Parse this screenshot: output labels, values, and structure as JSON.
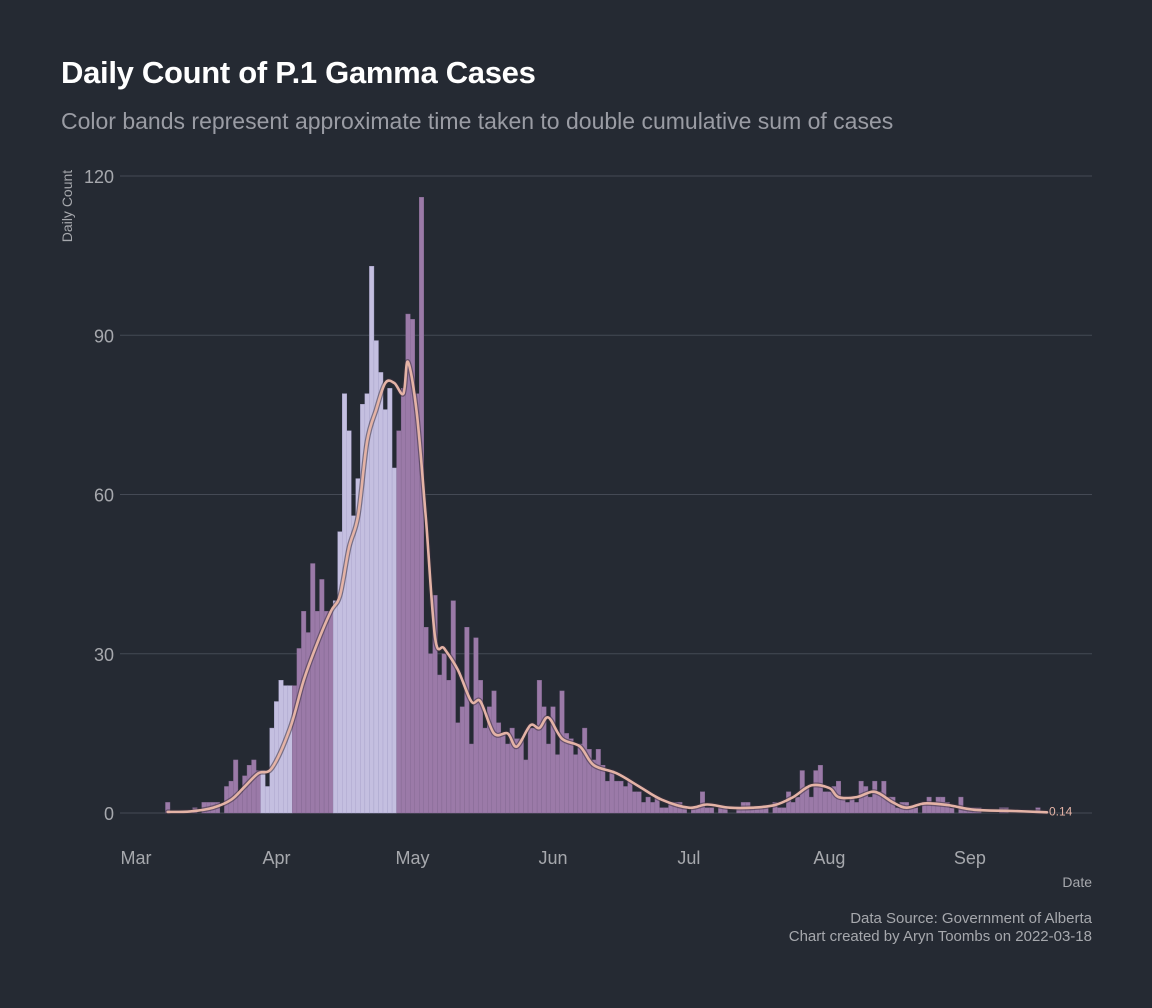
{
  "title": "Daily Count of P.1 Gamma Cases",
  "subtitle": "Color bands represent approximate time taken to double cumulative sum of cases",
  "caption": {
    "line1": "Data Source: Government of Alberta",
    "line2": "Chart created by Aryn Toombs on 2022-03-18"
  },
  "colors": {
    "background": "#252a33",
    "band_dark": "#9b7aa8",
    "band_light": "#c4bfe0",
    "smooth_line": "#e4b3a6",
    "grid": "#454a55",
    "text": "#a6a8ad"
  },
  "chart_data": {
    "type": "bar",
    "title": "Daily Count of P.1 Gamma Cases",
    "subtitle": "Color bands represent approximate time taken to double cumulative sum of cases",
    "xlabel": "Date",
    "ylabel": "Daily Count",
    "ylim": [
      0,
      120
    ],
    "yticks": [
      0,
      30,
      60,
      90,
      120
    ],
    "xlim": [
      "2021-03-01",
      "2021-09-25"
    ],
    "xticks": [
      {
        "date": "2021-03-01",
        "label": "Mar"
      },
      {
        "date": "2021-04-01",
        "label": "Apr"
      },
      {
        "date": "2021-05-01",
        "label": "May"
      },
      {
        "date": "2021-06-01",
        "label": "Jun"
      },
      {
        "date": "2021-07-01",
        "label": "Jul"
      },
      {
        "date": "2021-08-01",
        "label": "Aug"
      },
      {
        "date": "2021-09-01",
        "label": "Sep"
      }
    ],
    "grid": true,
    "legend": "none",
    "bands": [
      {
        "start": "2021-03-08",
        "end": "2021-03-21",
        "shade": "dark"
      },
      {
        "start": "2021-03-22",
        "end": "2021-03-28",
        "shade": "dark"
      },
      {
        "start": "2021-03-29",
        "end": "2021-04-04",
        "shade": "light"
      },
      {
        "start": "2021-04-05",
        "end": "2021-04-13",
        "shade": "dark"
      },
      {
        "start": "2021-04-14",
        "end": "2021-04-27",
        "shade": "light"
      },
      {
        "start": "2021-04-28",
        "end": "2021-09-25",
        "shade": "dark"
      }
    ],
    "series": [
      {
        "name": "Daily Count",
        "kind": "bar",
        "start_date": "2021-03-08",
        "values": [
          2,
          0,
          0,
          0,
          0,
          0,
          1,
          0,
          2,
          2,
          2,
          2,
          0,
          5,
          6,
          10,
          4,
          7,
          9,
          10,
          8,
          8,
          5,
          16,
          21,
          25,
          24,
          24,
          24,
          31,
          38,
          34,
          47,
          38,
          44,
          38,
          38,
          40,
          53,
          79,
          72,
          56,
          63,
          77,
          79,
          103,
          89,
          83,
          76,
          80,
          65,
          72,
          80,
          94,
          93,
          79,
          116,
          35,
          30,
          41,
          26,
          30,
          25,
          40,
          17,
          20,
          35,
          13,
          33,
          25,
          16,
          20,
          23,
          17,
          15,
          13,
          16,
          14,
          14,
          10,
          16,
          16,
          25,
          20,
          13,
          20,
          11,
          23,
          15,
          14,
          11,
          13,
          16,
          12,
          10,
          12,
          9,
          6,
          8,
          6,
          6,
          5,
          6,
          4,
          4,
          2,
          3,
          2,
          3,
          1,
          1,
          2,
          2,
          2,
          1,
          0,
          1,
          1,
          4,
          1,
          1,
          0,
          1,
          1,
          0,
          0,
          1,
          2,
          2,
          1,
          1,
          1,
          1,
          0,
          2,
          1,
          1,
          4,
          2,
          3,
          8,
          5,
          3,
          8,
          9,
          4,
          4,
          5,
          6,
          3,
          2,
          3,
          2,
          6,
          5,
          3,
          6,
          4,
          6,
          3,
          3,
          1,
          2,
          2,
          1,
          1,
          0,
          2,
          3,
          2,
          3,
          3,
          2,
          1,
          0,
          3,
          1,
          1,
          1,
          1,
          0,
          0,
          0,
          0,
          1,
          1,
          0,
          0,
          0,
          0,
          0,
          0,
          1
        ]
      },
      {
        "name": "Smoothed",
        "kind": "line",
        "points": [
          [
            "2021-03-08",
            0.2
          ],
          [
            "2021-03-13",
            0.3
          ],
          [
            "2021-03-18",
            1.0
          ],
          [
            "2021-03-22",
            2.5
          ],
          [
            "2021-03-25",
            5
          ],
          [
            "2021-03-28",
            7.5
          ],
          [
            "2021-03-31",
            8.5
          ],
          [
            "2021-04-04",
            16
          ],
          [
            "2021-04-07",
            25
          ],
          [
            "2021-04-10",
            32
          ],
          [
            "2021-04-13",
            38
          ],
          [
            "2021-04-15",
            41
          ],
          [
            "2021-04-17",
            50
          ],
          [
            "2021-04-19",
            56
          ],
          [
            "2021-04-21",
            70
          ],
          [
            "2021-04-23",
            76
          ],
          [
            "2021-04-25",
            81
          ],
          [
            "2021-04-27",
            81
          ],
          [
            "2021-04-29",
            79
          ],
          [
            "2021-04-30",
            85
          ],
          [
            "2021-05-02",
            75
          ],
          [
            "2021-05-04",
            55
          ],
          [
            "2021-05-06",
            33
          ],
          [
            "2021-05-08",
            31
          ],
          [
            "2021-05-11",
            27
          ],
          [
            "2021-05-14",
            21
          ],
          [
            "2021-05-16",
            21
          ],
          [
            "2021-05-19",
            15
          ],
          [
            "2021-05-22",
            15
          ],
          [
            "2021-05-24",
            12.5
          ],
          [
            "2021-05-27",
            16.5
          ],
          [
            "2021-05-29",
            16
          ],
          [
            "2021-05-31",
            18
          ],
          [
            "2021-06-03",
            14
          ],
          [
            "2021-06-07",
            12.5
          ],
          [
            "2021-06-10",
            9
          ],
          [
            "2021-06-15",
            7.5
          ],
          [
            "2021-06-20",
            5
          ],
          [
            "2021-06-25",
            2.5
          ],
          [
            "2021-07-01",
            1
          ],
          [
            "2021-07-05",
            1.6
          ],
          [
            "2021-07-10",
            1
          ],
          [
            "2021-07-15",
            1
          ],
          [
            "2021-07-20",
            1.5
          ],
          [
            "2021-07-24",
            3
          ],
          [
            "2021-07-28",
            5.2
          ],
          [
            "2021-08-01",
            4.7
          ],
          [
            "2021-08-03",
            3
          ],
          [
            "2021-08-07",
            3
          ],
          [
            "2021-08-11",
            4
          ],
          [
            "2021-08-15",
            2
          ],
          [
            "2021-08-18",
            1
          ],
          [
            "2021-08-22",
            1.8
          ],
          [
            "2021-08-27",
            1.5
          ],
          [
            "2021-09-02",
            0.6
          ],
          [
            "2021-09-10",
            0.4
          ],
          [
            "2021-09-18",
            0.14
          ]
        ]
      }
    ],
    "annotations": [
      {
        "date": "2021-09-18",
        "value": 0.14,
        "text": "0.14"
      }
    ]
  }
}
